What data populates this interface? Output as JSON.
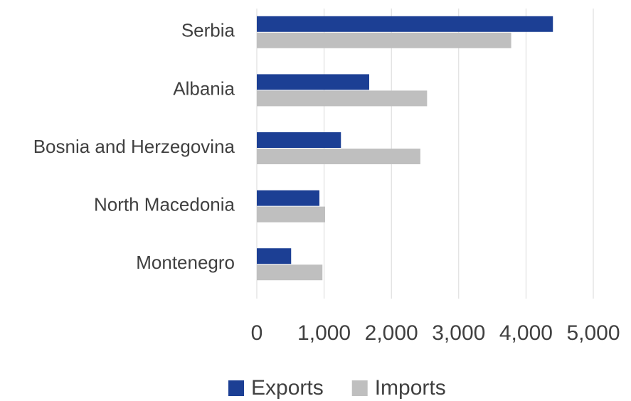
{
  "chart_data": {
    "type": "barh",
    "categories": [
      "Serbia",
      "Albania",
      "Bosnia and Herzegovina",
      "North Macedonia",
      "Montenegro"
    ],
    "series": [
      {
        "name": "Exports",
        "color": "#1c3f94",
        "values": [
          4400,
          1670,
          1250,
          930,
          510
        ]
      },
      {
        "name": "Imports",
        "color": "#bfbfbf",
        "values": [
          3780,
          2530,
          2430,
          1015,
          975
        ]
      }
    ],
    "xlim": [
      0,
      5000
    ],
    "xticks": [
      0,
      {
        "value": 1000,
        "label": "1,000"
      },
      {
        "value": 2000,
        "label": "2,000"
      },
      {
        "value": 3000,
        "label": "3,000"
      },
      {
        "value": 4000,
        "label": "4,000"
      },
      {
        "value": 5000,
        "label": "5,000"
      }
    ],
    "grid": true,
    "legend": "bottom"
  }
}
